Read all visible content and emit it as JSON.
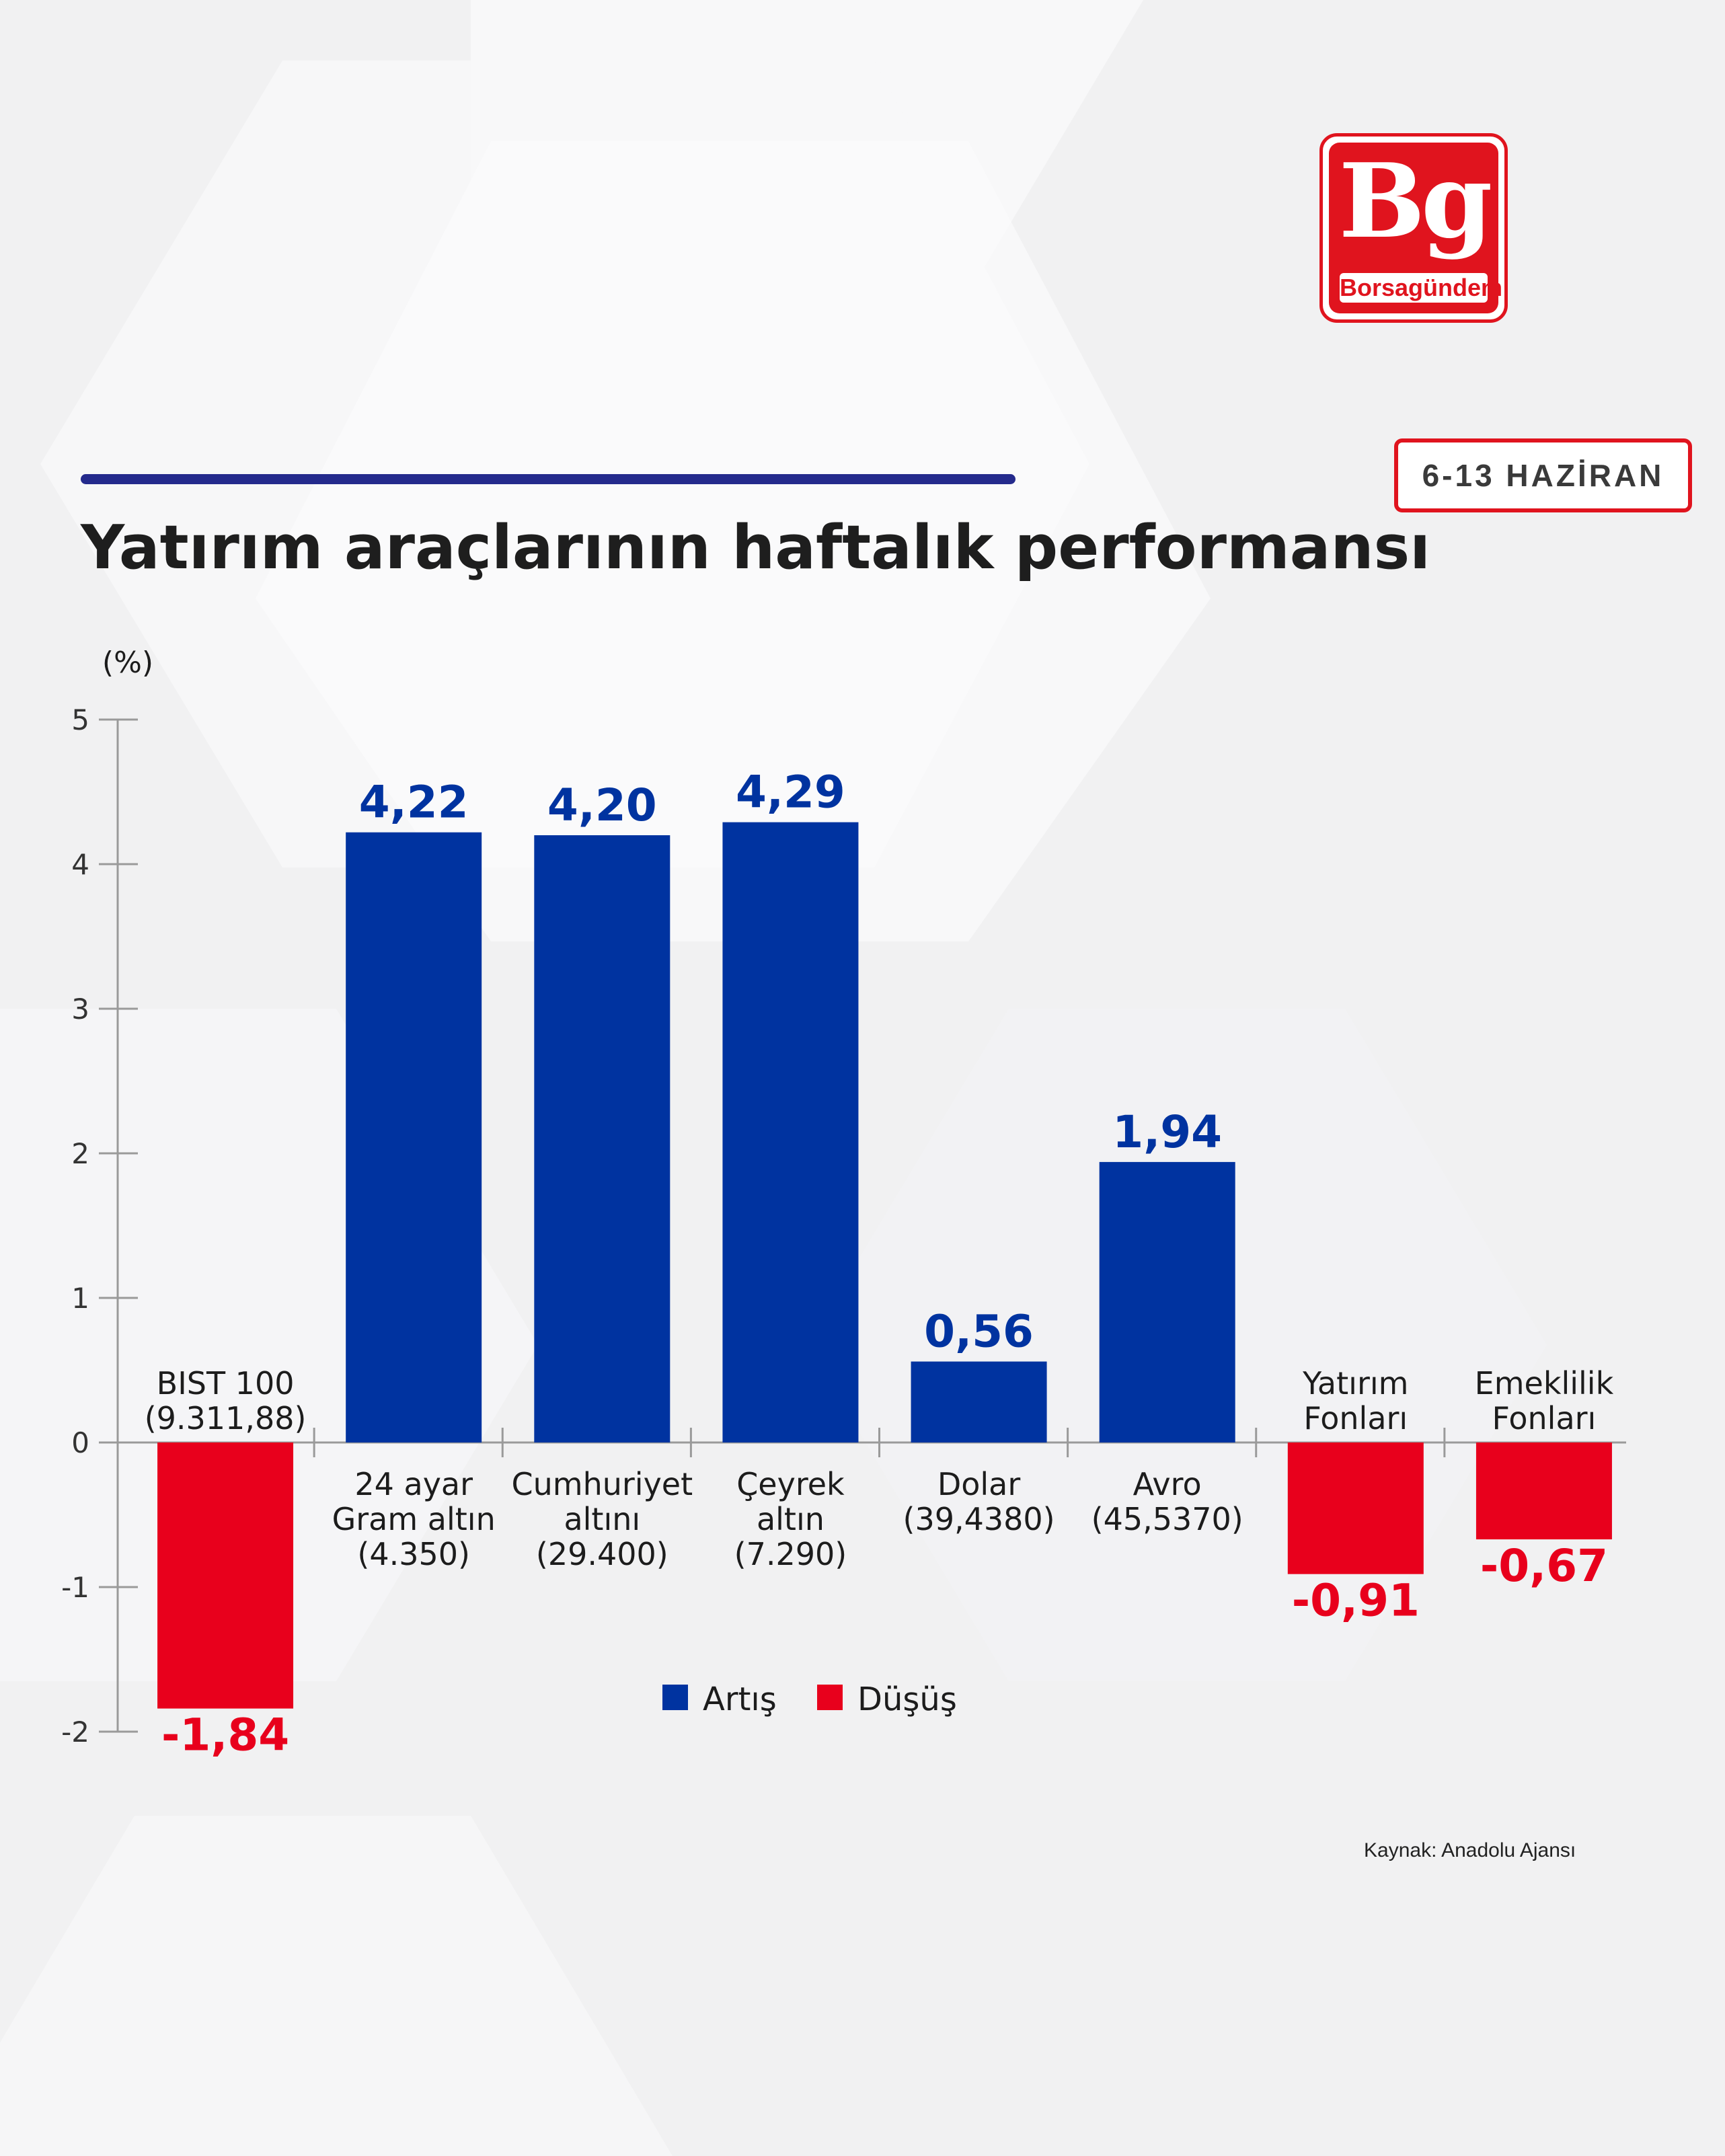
{
  "brand": {
    "logo_mark": "Bg",
    "logo_name": "Borsagündem"
  },
  "header": {
    "title": "Yatırım araçlarının haftalık performansı",
    "date_badge": "6-13 HAZİRAN"
  },
  "source": "Kaynak: Anadolu Ajansı",
  "colors": {
    "increase": "#0033a0",
    "decrease": "#e8001c",
    "title": "#1e1e1e",
    "accent_bar": "#242a8c"
  },
  "chart_data": {
    "type": "bar",
    "ylabel": "(%)",
    "ylim": [
      -2,
      5
    ],
    "yticks": [
      5,
      4,
      3,
      2,
      1,
      0,
      -1,
      -2
    ],
    "categories": [
      {
        "label": [
          "BIST 100",
          "(9.311,88)"
        ],
        "label_position": "above-axis",
        "value": -1.84,
        "value_label": "-1,84",
        "series": "Düşüş"
      },
      {
        "label": [
          "24 ayar",
          "Gram altın",
          "(4.350)"
        ],
        "label_position": "below-axis",
        "value": 4.22,
        "value_label": "4,22",
        "series": "Artış"
      },
      {
        "label": [
          "Cumhuriyet",
          "altını",
          "(29.400)"
        ],
        "label_position": "below-axis",
        "value": 4.2,
        "value_label": "4,20",
        "series": "Artış"
      },
      {
        "label": [
          "Çeyrek",
          "altın",
          "(7.290)"
        ],
        "label_position": "below-axis",
        "value": 4.29,
        "value_label": "4,29",
        "series": "Artış"
      },
      {
        "label": [
          "Dolar",
          "(39,4380)"
        ],
        "label_position": "below-axis",
        "value": 0.56,
        "value_label": "0,56",
        "series": "Artış"
      },
      {
        "label": [
          "Avro",
          "(45,5370)"
        ],
        "label_position": "below-axis",
        "value": 1.94,
        "value_label": "1,94",
        "series": "Artış"
      },
      {
        "label": [
          "Yatırım",
          "Fonları"
        ],
        "label_position": "above-axis",
        "value": -0.91,
        "value_label": "-0,91",
        "series": "Düşüş"
      },
      {
        "label": [
          "Emeklilik",
          "Fonları"
        ],
        "label_position": "above-axis",
        "value": -0.67,
        "value_label": "-0,67",
        "series": "Düşüş"
      }
    ],
    "legend": [
      {
        "name": "Artış",
        "color": "#0033a0"
      },
      {
        "name": "Düşüş",
        "color": "#e8001c"
      }
    ],
    "legend_placement": "bottom-center",
    "grid": false
  }
}
